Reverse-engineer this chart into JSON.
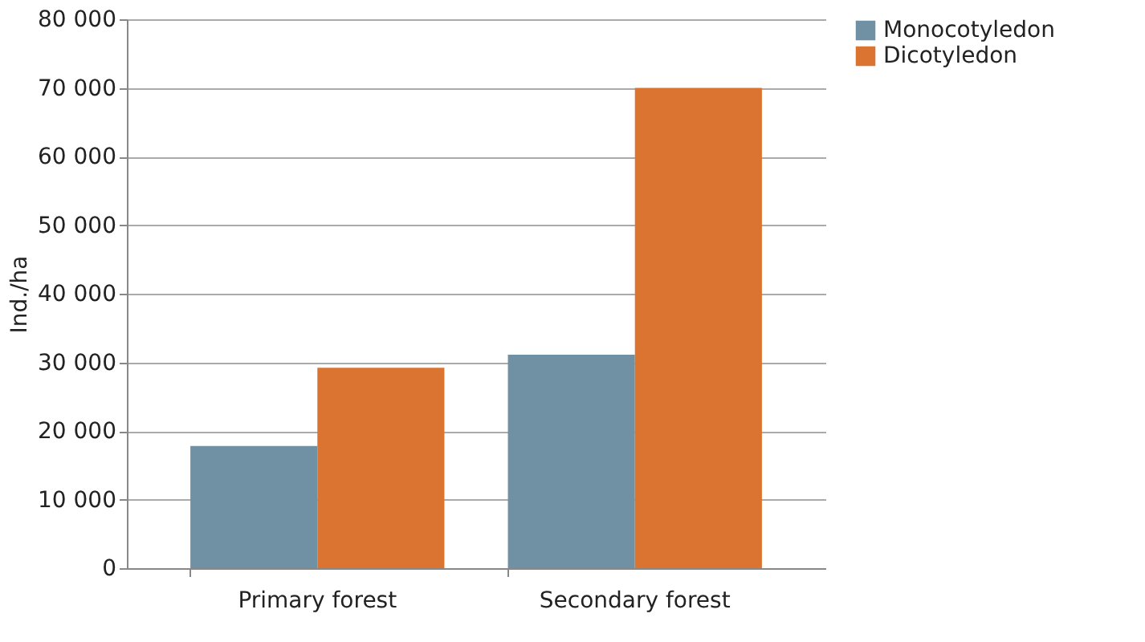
{
  "chart_data": {
    "type": "bar",
    "ylabel": "Ind./ha",
    "categories": [
      "Primary forest",
      "Secondary forest"
    ],
    "series": [
      {
        "name": "Monocotyledon",
        "color": "#6f91a3",
        "values": [
          17800,
          31100
        ]
      },
      {
        "name": "Dicotyledon",
        "color": "#db7431",
        "values": [
          29200,
          70000
        ]
      }
    ],
    "ylim": [
      0,
      80000
    ],
    "yticks": [
      {
        "value": 0,
        "label": "0"
      },
      {
        "value": 10000,
        "label": "10 000"
      },
      {
        "value": 20000,
        "label": "20 000"
      },
      {
        "value": 30000,
        "label": "30 000"
      },
      {
        "value": 40000,
        "label": "40 000"
      },
      {
        "value": 50000,
        "label": "50 000"
      },
      {
        "value": 60000,
        "label": "60 000"
      },
      {
        "value": 70000,
        "label": "70 000"
      },
      {
        "value": 80000,
        "label": "80 000"
      }
    ],
    "grid": "y",
    "legend": "right"
  }
}
